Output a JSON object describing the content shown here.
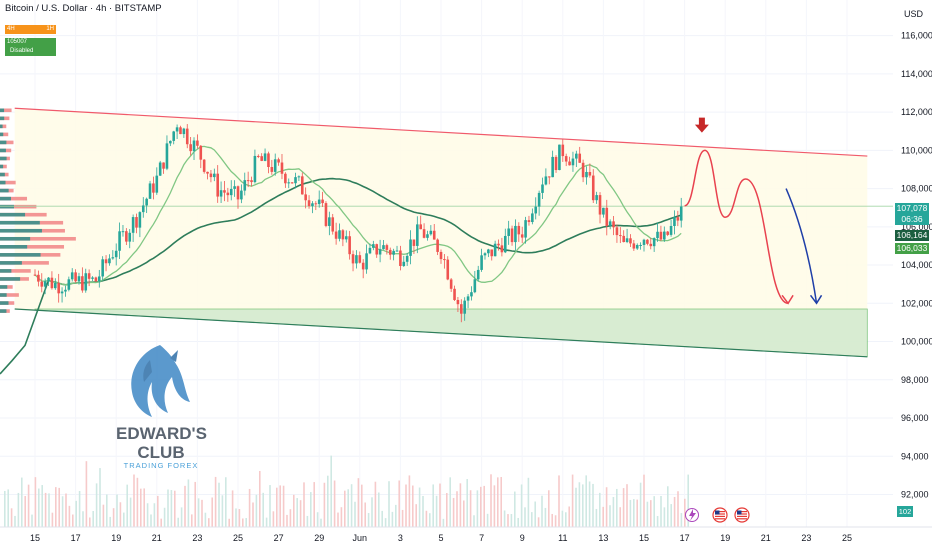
{
  "header": {
    "title": "Bitcoin / U.S. Dollar · 4h · BITSTAMP",
    "badge_tf_left": "4H",
    "badge_tf_right": "1H",
    "badge_value": "105007",
    "badge_status": "Disabled"
  },
  "axis": {
    "currency": "USD"
  },
  "price_tags": {
    "last_price": "107,078",
    "countdown": "06:36",
    "ma_value": "106,164",
    "ma2_value": "106,033"
  },
  "logo": {
    "title_line1": "EDWARD'S",
    "title_line2": "CLUB",
    "subtitle": "TRADING FOREX"
  },
  "volume_axis_label": "102",
  "colors": {
    "up": "#26a69a",
    "down": "#ef5350",
    "resistance": "#f05a6b",
    "support_zone": "#4caf50",
    "ma_fast": "#81c784",
    "ma_slow": "#2e7d5b",
    "bear_path_red": "#e8424f",
    "bear_path_blue": "#1f3fa8"
  },
  "chart_data": {
    "type": "candlestick",
    "symbol": "Bitcoin / U.S. Dollar",
    "timeframe": "4h",
    "exchange": "BITSTAMP",
    "ylim": [
      91000,
      117000
    ],
    "y_ticks": [
      92000,
      94000,
      96000,
      98000,
      100000,
      102000,
      104000,
      106000,
      108000,
      110000,
      112000,
      114000,
      116000
    ],
    "y_tick_labels": [
      "92,000",
      "94,000",
      "96,000",
      "98,000",
      "100,000",
      "102,000",
      "104,000",
      "106,000",
      "108,000",
      "110,000",
      "112,000",
      "114,000",
      "116,000"
    ],
    "x_tick_labels": [
      "15",
      "17",
      "19",
      "21",
      "23",
      "25",
      "27",
      "29",
      "Jun",
      "3",
      "5",
      "7",
      "9",
      "11",
      "13",
      "15",
      "17",
      "19",
      "21",
      "23",
      "25"
    ],
    "price_key_points": [
      {
        "date": "May 15",
        "close": 103500
      },
      {
        "date": "May 16",
        "close": 103000
      },
      {
        "date": "May 18",
        "close": 103200
      },
      {
        "date": "May 19",
        "close": 105000
      },
      {
        "date": "May 20",
        "close": 106500
      },
      {
        "date": "May 21",
        "close": 108500
      },
      {
        "date": "May 22",
        "close": 111500
      },
      {
        "date": "May 23",
        "close": 110000
      },
      {
        "date": "May 24",
        "close": 108000
      },
      {
        "date": "May 25",
        "close": 107500
      },
      {
        "date": "May 26",
        "close": 109500
      },
      {
        "date": "May 27",
        "close": 109000
      },
      {
        "date": "May 28",
        "close": 108200
      },
      {
        "date": "May 29",
        "close": 107000
      },
      {
        "date": "May 30",
        "close": 105500
      },
      {
        "date": "May 31",
        "close": 104000
      },
      {
        "date": "Jun 1",
        "close": 105000
      },
      {
        "date": "Jun 2",
        "close": 104500
      },
      {
        "date": "Jun 3",
        "close": 105800
      },
      {
        "date": "Jun 4",
        "close": 104800
      },
      {
        "date": "Jun 5",
        "close": 101500
      },
      {
        "date": "Jun 6",
        "close": 104200
      },
      {
        "date": "Jun 7",
        "close": 105200
      },
      {
        "date": "Jun 8",
        "close": 105800
      },
      {
        "date": "Jun 9",
        "close": 108500
      },
      {
        "date": "Jun 10",
        "close": 110000
      },
      {
        "date": "Jun 11",
        "close": 109000
      },
      {
        "date": "Jun 12",
        "close": 106500
      },
      {
        "date": "Jun 13",
        "close": 105000
      },
      {
        "date": "Jun 14",
        "close": 105500
      },
      {
        "date": "Jun 15",
        "close": 105300
      },
      {
        "date": "Jun 16",
        "close": 107078
      }
    ],
    "last_price": 107078,
    "indicators": {
      "ma_fast_last": 106164,
      "ma_slow_last": 106033
    },
    "annotations": {
      "resistance_line": {
        "from": {
          "date": "May 14",
          "price": 112200
        },
        "to": {
          "date": "Jun 25",
          "price": 109700
        }
      },
      "support_line": {
        "from": {
          "date": "May 14",
          "price": 101700
        },
        "to": {
          "date": "Jun 25",
          "price": 99200
        }
      },
      "support_zone": {
        "from_date": "May 15",
        "to_date": "Jun 25",
        "top": 101700,
        "bottom": 99200
      },
      "sell_arrow": {
        "date": "Jun 17",
        "price": 111500
      },
      "red_projection": [
        {
          "date": "Jun 16",
          "price": 107100
        },
        {
          "date": "Jun 17",
          "price": 110000
        },
        {
          "date": "Jun 18",
          "price": 106500
        },
        {
          "date": "Jun 19",
          "price": 108500
        },
        {
          "date": "Jun 21",
          "price": 102000
        }
      ],
      "blue_projection": [
        {
          "date": "Jun 21",
          "price": 108000
        },
        {
          "date": "Jun 22",
          "price": 104500
        },
        {
          "date": "Jun 22.5",
          "price": 102000
        }
      ]
    }
  }
}
